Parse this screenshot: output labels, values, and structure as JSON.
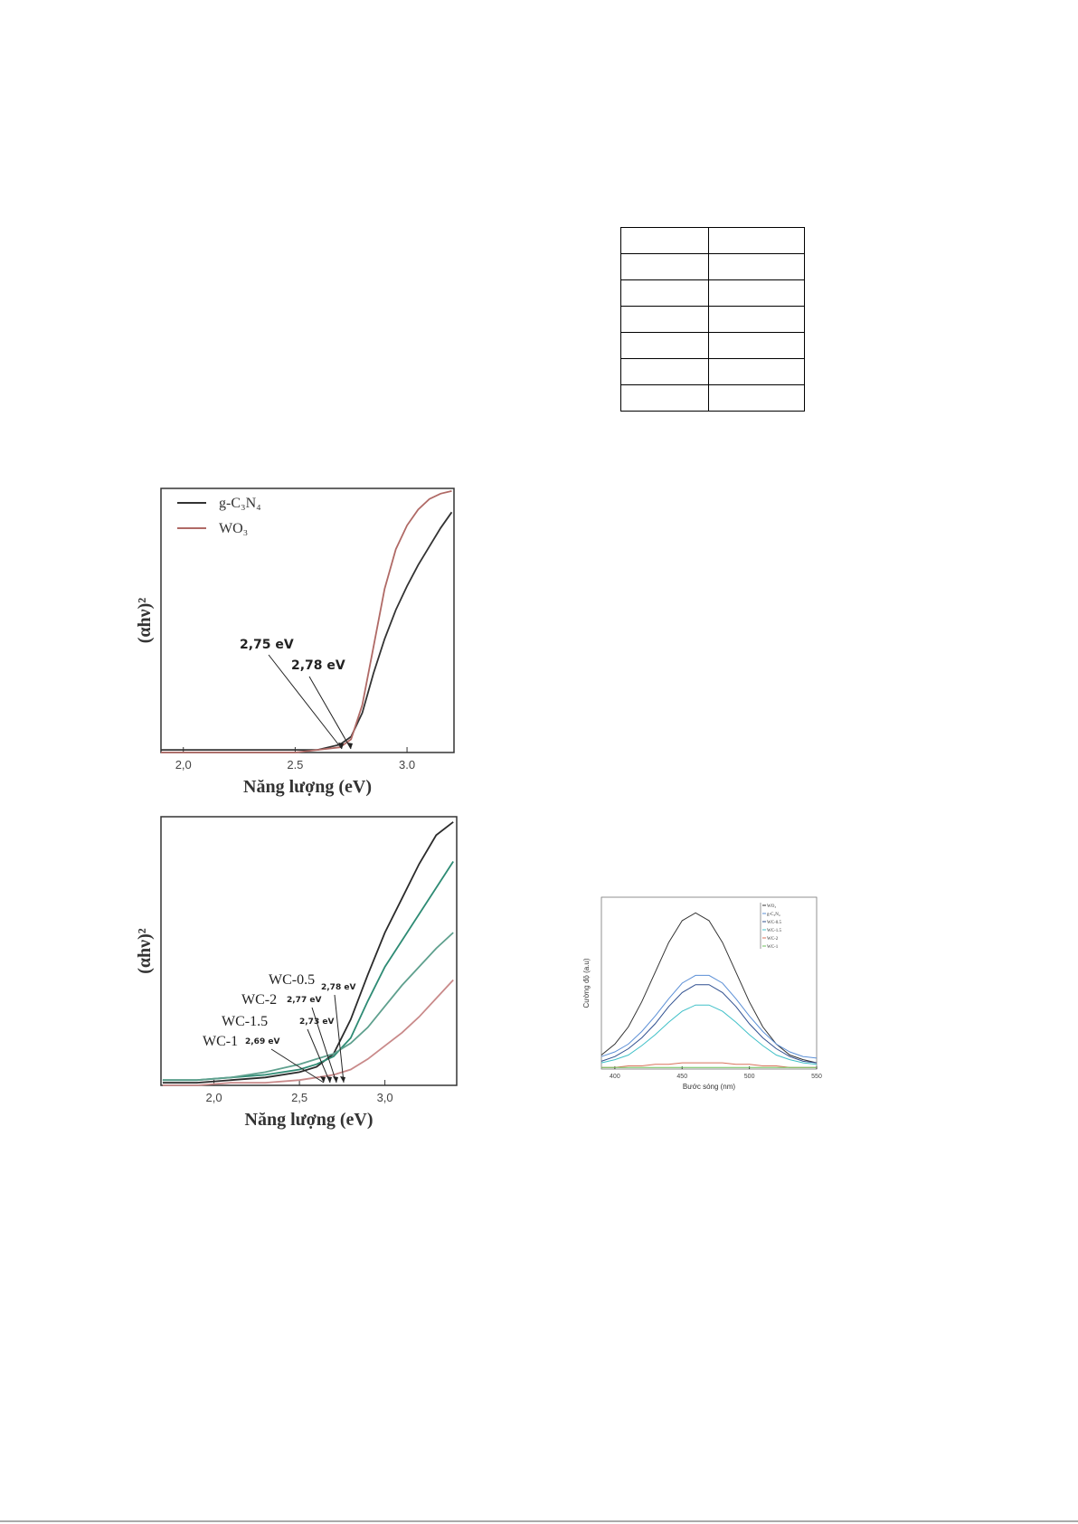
{
  "chart_data": [
    {
      "type": "line",
      "xlabel": "Năng lượng (eV)",
      "ylabel": "(αhν)²",
      "x": [
        1.9,
        2.0,
        2.1,
        2.2,
        2.3,
        2.4,
        2.5,
        2.6,
        2.7,
        2.75,
        2.8,
        2.85,
        2.9,
        2.95,
        3.0,
        3.05,
        3.1,
        3.15,
        3.2
      ],
      "series": [
        {
          "name": "g-C₃N₄",
          "color": "#333333",
          "values": [
            0.01,
            0.01,
            0.01,
            0.01,
            0.01,
            0.01,
            0.01,
            0.01,
            0.03,
            0.06,
            0.15,
            0.3,
            0.43,
            0.54,
            0.63,
            0.71,
            0.78,
            0.85,
            0.91
          ]
        },
        {
          "name": "WO₃",
          "color": "#b06a66",
          "values": [
            0.0,
            0.0,
            0.0,
            0.0,
            0.0,
            0.0,
            0.0,
            0.01,
            0.02,
            0.05,
            0.18,
            0.4,
            0.62,
            0.77,
            0.86,
            0.92,
            0.96,
            0.98,
            0.99
          ]
        }
      ],
      "xlim": [
        1.9,
        3.21
      ],
      "ylim": [
        0,
        1
      ],
      "xticks": [
        {
          "value": 2.0,
          "label": "2,0"
        },
        2.5,
        {
          "value": 3.0,
          "label": "3.0"
        }
      ],
      "legend": "upper left",
      "annotations": [
        {
          "energy": "2,75 eV"
        },
        {
          "energy": "2,78 eV"
        }
      ]
    },
    {
      "type": "line",
      "xlabel": "Năng lượng (eV)",
      "ylabel": "(αhν)²",
      "x": [
        1.7,
        1.9,
        2.1,
        2.3,
        2.5,
        2.6,
        2.7,
        2.8,
        2.9,
        3.0,
        3.1,
        3.2,
        3.3,
        3.4
      ],
      "series": [
        {
          "name": "WC-0.5",
          "color": "#2b2b2b",
          "values": [
            0.01,
            0.01,
            0.02,
            0.03,
            0.05,
            0.07,
            0.12,
            0.25,
            0.42,
            0.58,
            0.71,
            0.84,
            0.95,
            1.0
          ]
        },
        {
          "name": "WC-2",
          "color": "#2e8b74",
          "values": [
            0.02,
            0.02,
            0.03,
            0.04,
            0.06,
            0.08,
            0.11,
            0.18,
            0.32,
            0.45,
            0.55,
            0.65,
            0.75,
            0.85
          ]
        },
        {
          "name": "WC-1.5",
          "color": "#5fa08e",
          "values": [
            0.02,
            0.02,
            0.03,
            0.05,
            0.08,
            0.1,
            0.12,
            0.16,
            0.22,
            0.3,
            0.38,
            0.45,
            0.52,
            0.58
          ]
        },
        {
          "name": "WC-1",
          "color": "#c98a8a",
          "values": [
            0.0,
            0.0,
            0.01,
            0.01,
            0.02,
            0.03,
            0.04,
            0.06,
            0.1,
            0.15,
            0.2,
            0.26,
            0.33,
            0.4
          ]
        }
      ],
      "xlim": [
        1.69,
        3.42
      ],
      "ylim": [
        0,
        1.02
      ],
      "xticks": [
        {
          "value": 2.0,
          "label": "2,0"
        },
        {
          "value": 2.5,
          "label": "2,5"
        },
        {
          "value": 3.0,
          "label": "3,0"
        }
      ],
      "annotations": [
        {
          "label": "WC-0.5",
          "energy": "2,78 eV"
        },
        {
          "label": "WC-2",
          "energy": "2,77 eV"
        },
        {
          "label": "WC-1.5",
          "energy": "2,73 eV"
        },
        {
          "label": "WC-1",
          "energy": "2,69 eV"
        }
      ]
    },
    {
      "type": "line",
      "xlabel": "Bước sóng (nm)",
      "ylabel": "Cường độ (a.u)",
      "x": [
        390,
        400,
        410,
        420,
        430,
        440,
        450,
        460,
        470,
        480,
        490,
        500,
        510,
        520,
        530,
        540,
        550
      ],
      "series": [
        {
          "name": "WO₃",
          "color": "#333333",
          "values": [
            0.09,
            0.16,
            0.27,
            0.43,
            0.62,
            0.81,
            0.95,
            1.0,
            0.95,
            0.81,
            0.62,
            0.43,
            0.27,
            0.16,
            0.09,
            0.06,
            0.04
          ]
        },
        {
          "name": "g-C₃N₄",
          "color": "#5b8fd6",
          "values": [
            0.08,
            0.11,
            0.16,
            0.24,
            0.34,
            0.45,
            0.55,
            0.6,
            0.6,
            0.55,
            0.45,
            0.34,
            0.24,
            0.16,
            0.11,
            0.08,
            0.07
          ]
        },
        {
          "name": "WC-0.5",
          "color": "#2f4f8f",
          "values": [
            0.05,
            0.08,
            0.13,
            0.2,
            0.29,
            0.4,
            0.49,
            0.54,
            0.54,
            0.49,
            0.4,
            0.29,
            0.2,
            0.13,
            0.08,
            0.05,
            0.04
          ]
        },
        {
          "name": "WC-1.5",
          "color": "#40c0c8",
          "values": [
            0.04,
            0.06,
            0.09,
            0.15,
            0.22,
            0.3,
            0.37,
            0.41,
            0.41,
            0.37,
            0.3,
            0.22,
            0.15,
            0.09,
            0.06,
            0.04,
            0.03
          ]
        },
        {
          "name": "WC-2",
          "color": "#d9725a",
          "values": [
            0.01,
            0.01,
            0.02,
            0.02,
            0.03,
            0.03,
            0.04,
            0.04,
            0.04,
            0.04,
            0.03,
            0.03,
            0.02,
            0.02,
            0.01,
            0.01,
            0.01
          ]
        },
        {
          "name": "WC-1",
          "color": "#6bbf59",
          "values": [
            0.01,
            0.01,
            0.01,
            0.01,
            0.01,
            0.01,
            0.01,
            0.01,
            0.01,
            0.01,
            0.01,
            0.01,
            0.01,
            0.01,
            0.01,
            0.01,
            0.01
          ]
        }
      ],
      "xlim": [
        390,
        550
      ],
      "ylim": [
        0,
        1.1
      ],
      "xticks": [
        400,
        450,
        500,
        550
      ],
      "legend": "upper right"
    }
  ]
}
